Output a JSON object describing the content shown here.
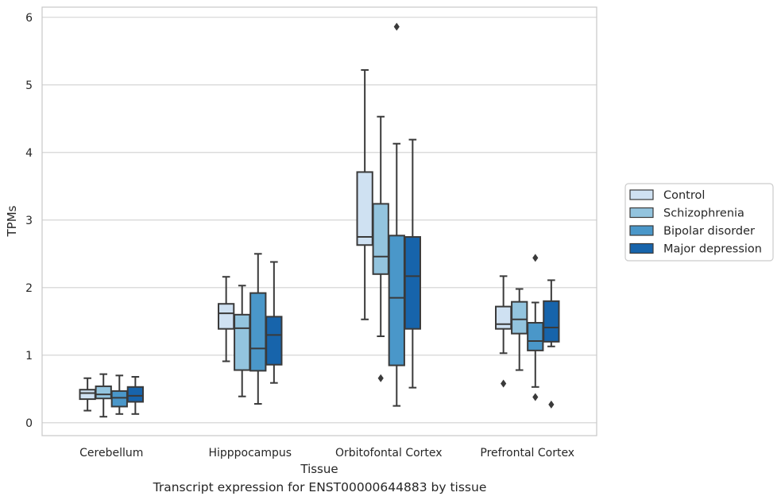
{
  "caption": "Transcript expression for ENST00000644883 by tissue",
  "colors": {
    "Control": "#cfe1f2",
    "Schizophrenia": "#93c4de",
    "Bipolar disorder": "#4a97c9",
    "Major depression": "#1764ab",
    "edge": "#3a3a3a",
    "grid": "#d0d0d0"
  },
  "chart_data": {
    "type": "box",
    "xlabel": "Tissue",
    "ylabel": "TPMs",
    "ylim": [
      -0.19,
      6.15
    ],
    "yticks": [
      0,
      1,
      2,
      3,
      4,
      5,
      6
    ],
    "grid": "horizontal",
    "legend_position": "right",
    "categories": [
      "Cerebellum",
      "Hipppocampus",
      "Orbitofontal Cortex",
      "Prefrontal Cortex"
    ],
    "series": [
      {
        "name": "Control",
        "boxes": [
          {
            "whislo": 0.18,
            "q1": 0.35,
            "med": 0.44,
            "q3": 0.49,
            "whishi": 0.66,
            "fliers": []
          },
          {
            "whislo": 0.91,
            "q1": 1.39,
            "med": 1.62,
            "q3": 1.76,
            "whishi": 2.16,
            "fliers": []
          },
          {
            "whislo": 1.53,
            "q1": 2.63,
            "med": 2.75,
            "q3": 3.71,
            "whishi": 5.22,
            "fliers": []
          },
          {
            "whislo": 1.03,
            "q1": 1.39,
            "med": 1.46,
            "q3": 1.72,
            "whishi": 2.17,
            "fliers": [
              0.58
            ]
          }
        ]
      },
      {
        "name": "Schizophrenia",
        "boxes": [
          {
            "whislo": 0.09,
            "q1": 0.36,
            "med": 0.42,
            "q3": 0.54,
            "whishi": 0.72,
            "fliers": []
          },
          {
            "whislo": 0.39,
            "q1": 0.78,
            "med": 1.4,
            "q3": 1.6,
            "whishi": 2.03,
            "fliers": []
          },
          {
            "whislo": 1.28,
            "q1": 2.2,
            "med": 2.46,
            "q3": 3.24,
            "whishi": 4.53,
            "fliers": [
              0.66
            ]
          },
          {
            "whislo": 0.78,
            "q1": 1.32,
            "med": 1.53,
            "q3": 1.79,
            "whishi": 1.98,
            "fliers": []
          }
        ]
      },
      {
        "name": "Bipolar disorder",
        "boxes": [
          {
            "whislo": 0.13,
            "q1": 0.24,
            "med": 0.37,
            "q3": 0.47,
            "whishi": 0.7,
            "fliers": []
          },
          {
            "whislo": 0.28,
            "q1": 0.77,
            "med": 1.1,
            "q3": 1.92,
            "whishi": 2.5,
            "fliers": []
          },
          {
            "whislo": 0.25,
            "q1": 0.85,
            "med": 1.85,
            "q3": 2.77,
            "whishi": 4.13,
            "fliers": [
              5.86
            ]
          },
          {
            "whislo": 0.53,
            "q1": 1.07,
            "med": 1.21,
            "q3": 1.48,
            "whishi": 1.78,
            "fliers": [
              0.38,
              2.44
            ]
          }
        ]
      },
      {
        "name": "Major depression",
        "boxes": [
          {
            "whislo": 0.13,
            "q1": 0.31,
            "med": 0.4,
            "q3": 0.53,
            "whishi": 0.68,
            "fliers": []
          },
          {
            "whislo": 0.59,
            "q1": 0.86,
            "med": 1.3,
            "q3": 1.57,
            "whishi": 2.38,
            "fliers": []
          },
          {
            "whislo": 0.52,
            "q1": 1.39,
            "med": 2.17,
            "q3": 2.75,
            "whishi": 4.19,
            "fliers": []
          },
          {
            "whislo": 1.13,
            "q1": 1.2,
            "med": 1.41,
            "q3": 1.8,
            "whishi": 2.11,
            "fliers": [
              0.27
            ]
          }
        ]
      }
    ]
  }
}
